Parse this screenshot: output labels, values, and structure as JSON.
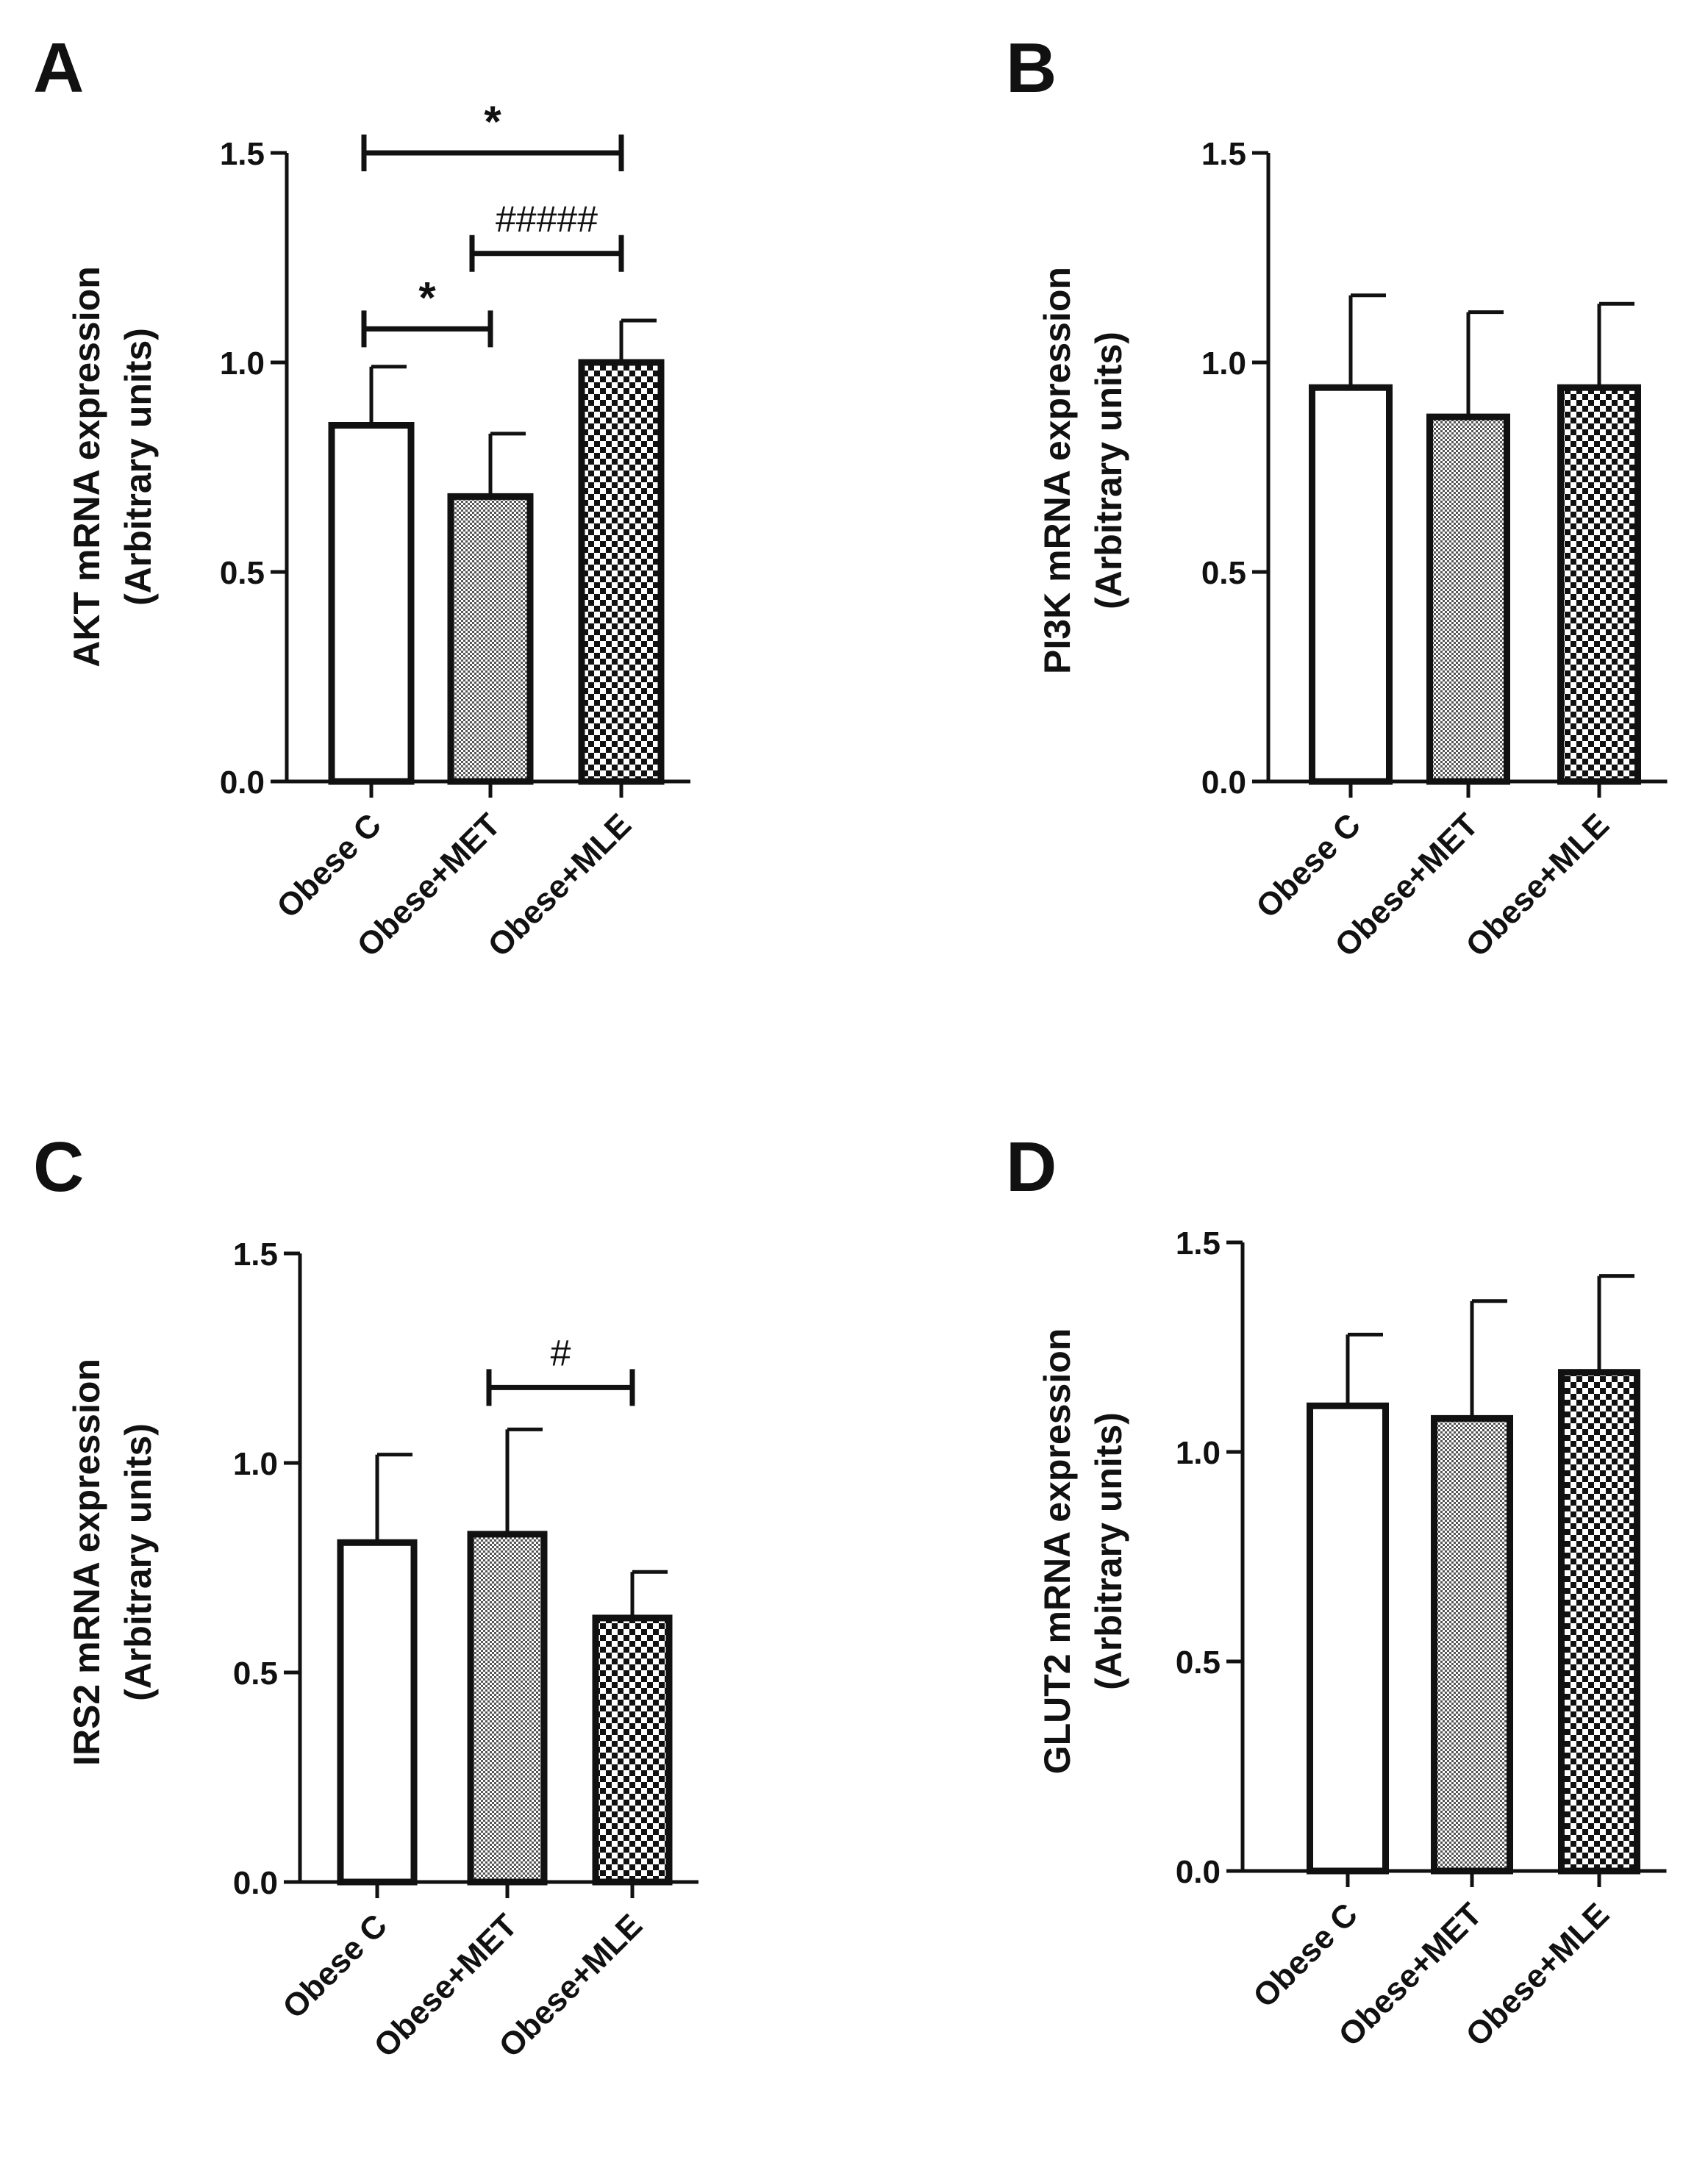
{
  "chart_data": [
    {
      "panel": "A",
      "type": "bar",
      "ylabel_line1": "AKT mRNA expression",
      "ylabel_line2": "(Arbitrary units)",
      "categories": [
        "Obese C",
        "Obese+MET",
        "Obese+MLE"
      ],
      "patterns": [
        "none",
        "fine",
        "checker"
      ],
      "values": [
        0.85,
        0.68,
        1.0
      ],
      "errors": [
        0.14,
        0.15,
        0.1
      ],
      "ylim": [
        0,
        1.5
      ],
      "yticks": [
        {
          "value": 0,
          "label": "0.0"
        },
        {
          "value": 0.5,
          "label": "0.5"
        },
        {
          "value": 1.0,
          "label": "1.0"
        },
        {
          "value": 1.5,
          "label": "1.5"
        }
      ],
      "significance": [
        {
          "from": 0,
          "to": 2,
          "level": 1.5,
          "label": "*",
          "bold": true
        },
        {
          "from": 1,
          "to": 2,
          "level": 1.26,
          "label": "#####",
          "bold": false
        },
        {
          "from": 0,
          "to": 1,
          "level": 1.08,
          "label": "*",
          "bold": true
        }
      ]
    },
    {
      "panel": "B",
      "type": "bar",
      "ylabel_line1": "PI3K mRNA expression",
      "ylabel_line2": "(Arbitrary units)",
      "categories": [
        "Obese C",
        "Obese+MET",
        "Obese+MLE"
      ],
      "patterns": [
        "none",
        "fine",
        "checker"
      ],
      "values": [
        0.94,
        0.87,
        0.94
      ],
      "errors": [
        0.22,
        0.25,
        0.2
      ],
      "ylim": [
        0,
        1.5
      ],
      "yticks": [
        {
          "value": 0,
          "label": "0.0"
        },
        {
          "value": 0.5,
          "label": "0.5"
        },
        {
          "value": 1.0,
          "label": "1.0"
        },
        {
          "value": 1.5,
          "label": "1.5"
        }
      ],
      "significance": []
    },
    {
      "panel": "C",
      "type": "bar",
      "ylabel_line1": "IRS2 mRNA expression",
      "ylabel_line2": "(Arbitrary units)",
      "categories": [
        "Obese C",
        "Obese+MET",
        "Obese+MLE"
      ],
      "patterns": [
        "none",
        "fine",
        "checker"
      ],
      "values": [
        0.81,
        0.83,
        0.63
      ],
      "errors": [
        0.21,
        0.25,
        0.11
      ],
      "ylim": [
        0,
        1.5
      ],
      "yticks": [
        {
          "value": 0,
          "label": "0.0"
        },
        {
          "value": 0.5,
          "label": "0.5"
        },
        {
          "value": 1.0,
          "label": "1.0"
        },
        {
          "value": 1.5,
          "label": "1.5"
        }
      ],
      "significance": [
        {
          "from": 1,
          "to": 2,
          "level": 1.18,
          "label": "#",
          "bold": false
        }
      ]
    },
    {
      "panel": "D",
      "type": "bar",
      "ylabel_line1": "GLUT2 mRNA expression",
      "ylabel_line2": "(Arbitrary units)",
      "categories": [
        "Obese C",
        "Obese+MET",
        "Obese+MLE"
      ],
      "patterns": [
        "none",
        "fine",
        "checker"
      ],
      "values": [
        1.11,
        1.08,
        1.19
      ],
      "errors": [
        0.17,
        0.28,
        0.23
      ],
      "ylim": [
        0,
        1.5
      ],
      "yticks": [
        {
          "value": 0,
          "label": "0.0"
        },
        {
          "value": 0.5,
          "label": "0.5"
        },
        {
          "value": 1.0,
          "label": "1.0"
        },
        {
          "value": 1.5,
          "label": "1.5"
        }
      ],
      "significance": []
    }
  ]
}
